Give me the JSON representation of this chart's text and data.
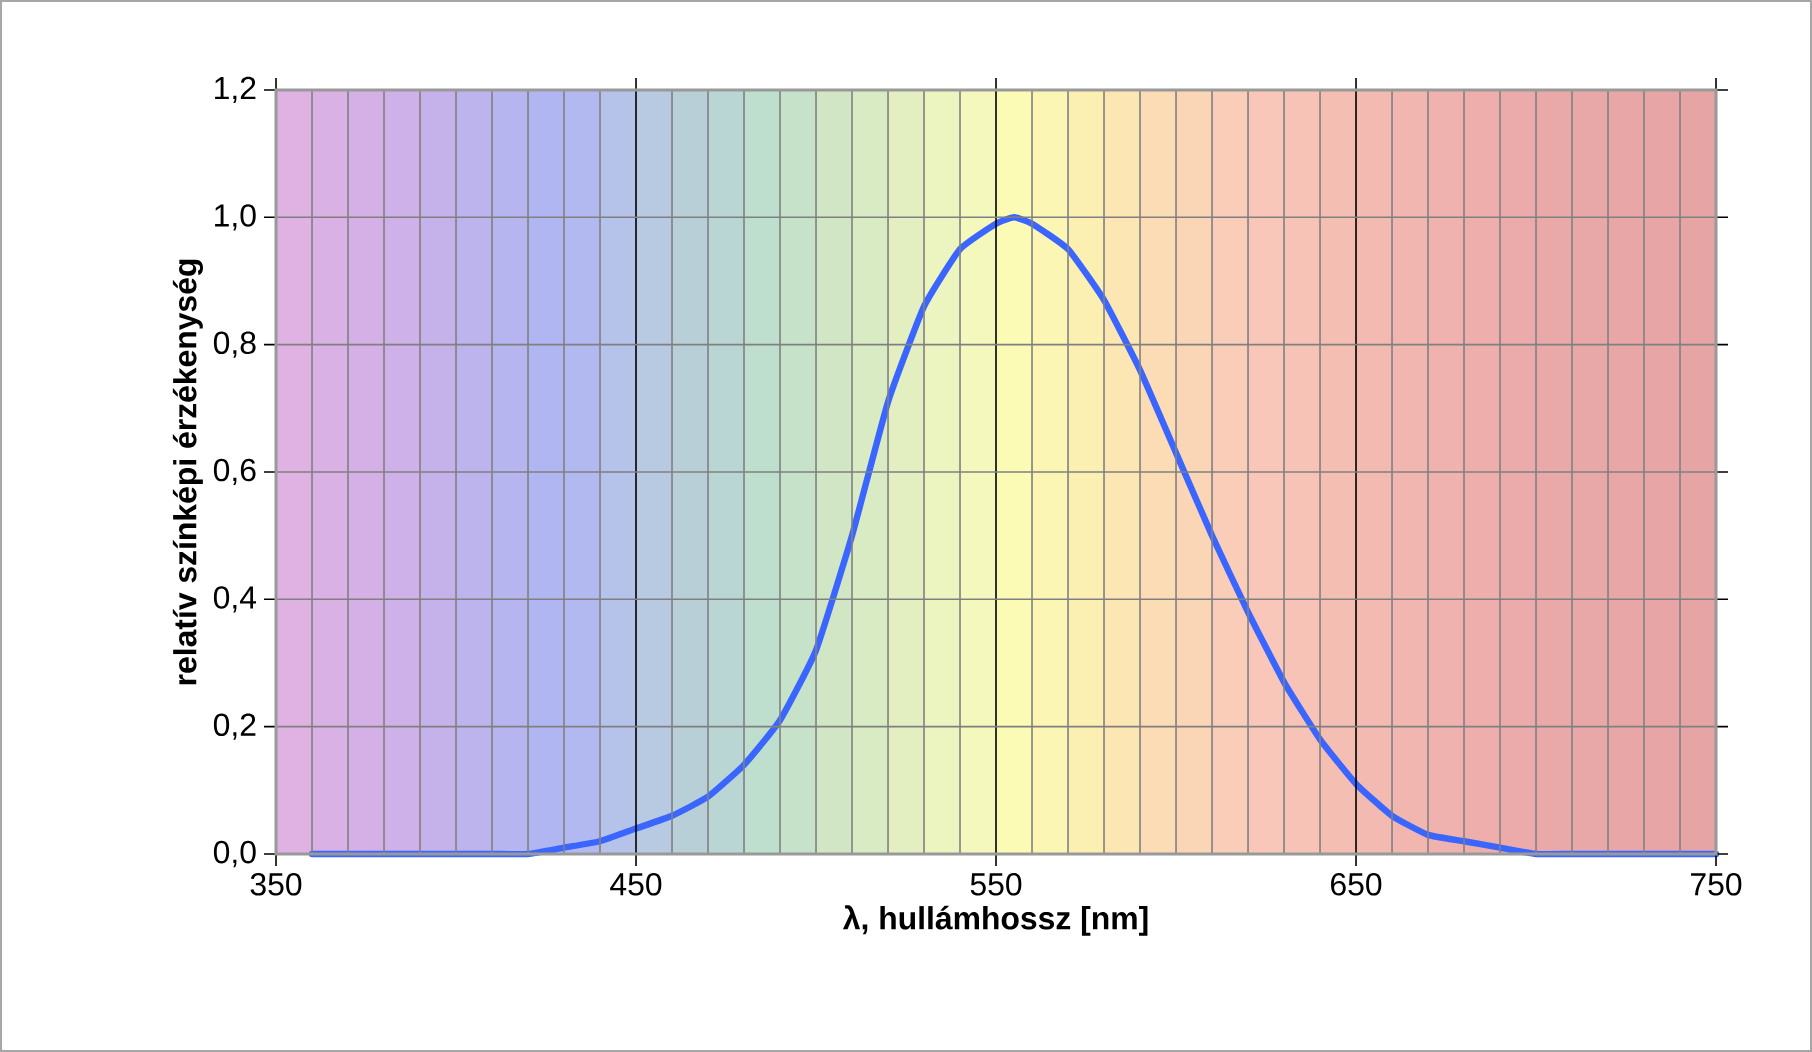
{
  "chart_data": {
    "type": "line",
    "xlabel": "λ, hullámhossz [nm]",
    "ylabel": "relatív színképi érzékenység",
    "xlim": [
      350,
      750
    ],
    "ylim": [
      0,
      1.2
    ],
    "xticks": [
      350,
      {
        "value": 360,
        "label": null
      },
      {
        "value": 370,
        "label": null
      },
      {
        "value": 380,
        "label": null
      },
      {
        "value": 390,
        "label": null
      },
      {
        "value": 400,
        "label": null
      },
      {
        "value": 410,
        "label": null
      },
      {
        "value": 420,
        "label": null
      },
      {
        "value": 430,
        "label": null
      },
      {
        "value": 440,
        "label": null
      },
      450,
      {
        "value": 460,
        "label": null
      },
      {
        "value": 470,
        "label": null
      },
      {
        "value": 480,
        "label": null
      },
      {
        "value": 490,
        "label": null
      },
      {
        "value": 500,
        "label": null
      },
      {
        "value": 510,
        "label": null
      },
      {
        "value": 520,
        "label": null
      },
      {
        "value": 530,
        "label": null
      },
      {
        "value": 540,
        "label": null
      },
      550,
      {
        "value": 560,
        "label": null
      },
      {
        "value": 570,
        "label": null
      },
      {
        "value": 580,
        "label": null
      },
      {
        "value": 590,
        "label": null
      },
      {
        "value": 600,
        "label": null
      },
      {
        "value": 610,
        "label": null
      },
      {
        "value": 620,
        "label": null
      },
      {
        "value": 630,
        "label": null
      },
      {
        "value": 640,
        "label": null
      },
      650,
      {
        "value": 660,
        "label": null
      },
      {
        "value": 670,
        "label": null
      },
      {
        "value": 680,
        "label": null
      },
      {
        "value": 690,
        "label": null
      },
      {
        "value": 700,
        "label": null
      },
      {
        "value": 710,
        "label": null
      },
      {
        "value": 720,
        "label": null
      },
      {
        "value": 730,
        "label": null
      },
      {
        "value": 740,
        "label": null
      },
      750
    ],
    "yticks": [
      {
        "value": 0,
        "label": "0,0"
      },
      {
        "value": 0.2,
        "label": "0,2"
      },
      {
        "value": 0.4,
        "label": "0,4"
      },
      {
        "value": 0.6,
        "label": "0,6"
      },
      {
        "value": 0.8,
        "label": "0,8"
      },
      {
        "value": 1.0,
        "label": "1,0"
      },
      {
        "value": 1.2,
        "label": "1,2"
      }
    ],
    "grid": true,
    "marker": "none",
    "line_style": "solid",
    "bands": [
      {
        "axis": "x",
        "from": 350,
        "to": 360,
        "color": "#dfb2e3"
      },
      {
        "axis": "x",
        "from": 360,
        "to": 370,
        "color": "#dab1e4"
      },
      {
        "axis": "x",
        "from": 370,
        "to": 380,
        "color": "#d4b0e6"
      },
      {
        "axis": "x",
        "from": 380,
        "to": 390,
        "color": "#cdb1e8"
      },
      {
        "axis": "x",
        "from": 390,
        "to": 400,
        "color": "#c6b2ea"
      },
      {
        "axis": "x",
        "from": 400,
        "to": 410,
        "color": "#bdb3ed"
      },
      {
        "axis": "x",
        "from": 410,
        "to": 420,
        "color": "#b6b5ef"
      },
      {
        "axis": "x",
        "from": 420,
        "to": 430,
        "color": "#b0b6f2"
      },
      {
        "axis": "x",
        "from": 430,
        "to": 440,
        "color": "#b2b9f0"
      },
      {
        "axis": "x",
        "from": 440,
        "to": 450,
        "color": "#b5c2ea"
      },
      {
        "axis": "x",
        "from": 450,
        "to": 460,
        "color": "#b8c9e2"
      },
      {
        "axis": "x",
        "from": 460,
        "to": 470,
        "color": "#b8cfd8"
      },
      {
        "axis": "x",
        "from": 470,
        "to": 480,
        "color": "#bad6d4"
      },
      {
        "axis": "x",
        "from": 480,
        "to": 490,
        "color": "#bedece"
      },
      {
        "axis": "x",
        "from": 490,
        "to": 500,
        "color": "#c6e2c8"
      },
      {
        "axis": "x",
        "from": 500,
        "to": 510,
        "color": "#d0e6c4"
      },
      {
        "axis": "x",
        "from": 510,
        "to": 520,
        "color": "#d9ebc3"
      },
      {
        "axis": "x",
        "from": 520,
        "to": 530,
        "color": "#e3efc0"
      },
      {
        "axis": "x",
        "from": 530,
        "to": 540,
        "color": "#ecf4bf"
      },
      {
        "axis": "x",
        "from": 540,
        "to": 550,
        "color": "#f4f8bc"
      },
      {
        "axis": "x",
        "from": 550,
        "to": 560,
        "color": "#fbfbb5"
      },
      {
        "axis": "x",
        "from": 560,
        "to": 570,
        "color": "#fbf6b3"
      },
      {
        "axis": "x",
        "from": 570,
        "to": 580,
        "color": "#fcefb2"
      },
      {
        "axis": "x",
        "from": 580,
        "to": 590,
        "color": "#fce6b3"
      },
      {
        "axis": "x",
        "from": 590,
        "to": 600,
        "color": "#fbdcb4"
      },
      {
        "axis": "x",
        "from": 600,
        "to": 610,
        "color": "#fad5b6"
      },
      {
        "axis": "x",
        "from": 610,
        "to": 620,
        "color": "#f9cdb7"
      },
      {
        "axis": "x",
        "from": 620,
        "to": 630,
        "color": "#f8c7b9"
      },
      {
        "axis": "x",
        "from": 630,
        "to": 640,
        "color": "#f7c3b7"
      },
      {
        "axis": "x",
        "from": 640,
        "to": 650,
        "color": "#f5beb3"
      },
      {
        "axis": "x",
        "from": 650,
        "to": 660,
        "color": "#f3bab1"
      },
      {
        "axis": "x",
        "from": 660,
        "to": 670,
        "color": "#f1b6af"
      },
      {
        "axis": "x",
        "from": 670,
        "to": 680,
        "color": "#efb2ae"
      },
      {
        "axis": "x",
        "from": 680,
        "to": 690,
        "color": "#edaeac"
      },
      {
        "axis": "x",
        "from": 690,
        "to": 700,
        "color": "#ebabab"
      },
      {
        "axis": "x",
        "from": 700,
        "to": 710,
        "color": "#eaa9a9"
      },
      {
        "axis": "x",
        "from": 710,
        "to": 720,
        "color": "#e9a8a8"
      },
      {
        "axis": "x",
        "from": 720,
        "to": 730,
        "color": "#e8a6a6"
      },
      {
        "axis": "x",
        "from": 730,
        "to": 740,
        "color": "#e8a5a5"
      },
      {
        "axis": "x",
        "from": 740,
        "to": 750,
        "color": "#e7a4a4"
      }
    ],
    "x": [
      360,
      370,
      380,
      390,
      400,
      410,
      420,
      430,
      440,
      450,
      460,
      470,
      480,
      490,
      500,
      510,
      520,
      530,
      540,
      550,
      555,
      560,
      570,
      580,
      590,
      600,
      610,
      620,
      630,
      640,
      650,
      660,
      670,
      680,
      690,
      700,
      710,
      720,
      730,
      740,
      750
    ],
    "series": [
      {
        "color": "#3a66ff",
        "values": [
          0,
          0,
          0,
          0,
          0,
          0,
          0,
          0.01,
          0.02,
          0.04,
          0.06,
          0.09,
          0.14,
          0.21,
          0.32,
          0.5,
          0.71,
          0.86,
          0.95,
          0.99,
          1.0,
          0.99,
          0.95,
          0.87,
          0.76,
          0.63,
          0.5,
          0.38,
          0.27,
          0.18,
          0.11,
          0.06,
          0.03,
          0.02,
          0.01,
          0,
          0,
          0,
          0,
          0,
          0
        ]
      }
    ]
  }
}
